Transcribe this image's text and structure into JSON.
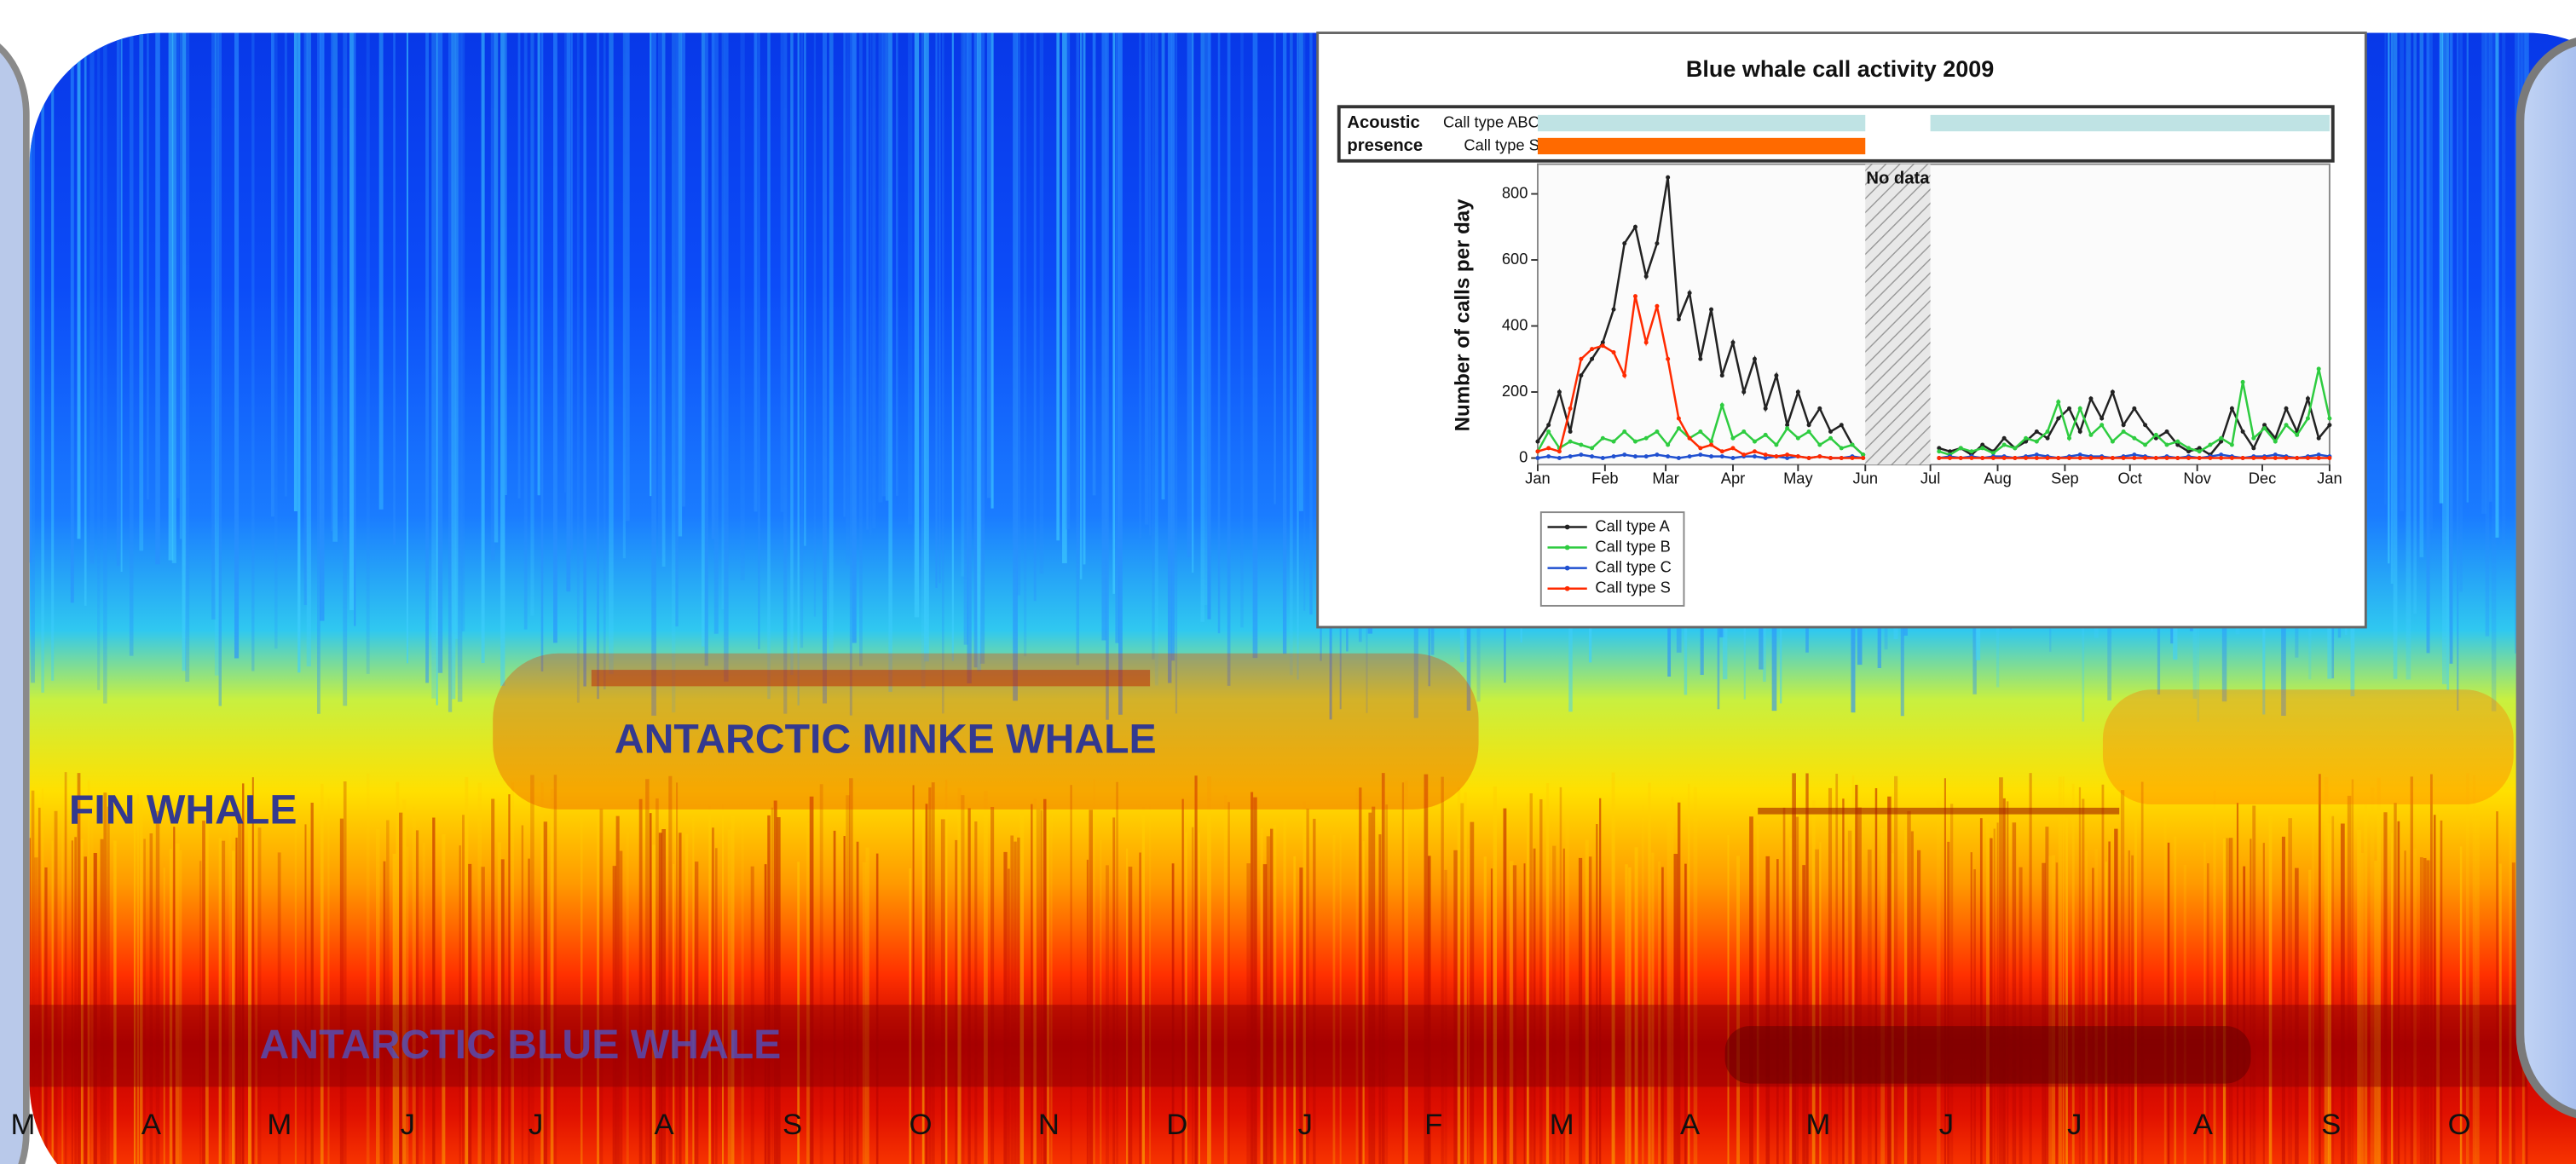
{
  "chart_data": [
    {
      "type": "spectrogram",
      "categories": [
        "M",
        "A",
        "M",
        "J",
        "J",
        "A",
        "S",
        "O",
        "N",
        "D",
        "J",
        "F",
        "M",
        "A",
        "M",
        "J",
        "J",
        "A",
        "S",
        "O"
      ],
      "annotations": [
        "FIN WHALE",
        "ANTARCTIC MINKE WHALE",
        "ANTARCTIC BLUE WHALE"
      ]
    },
    {
      "type": "line",
      "title": "Blue whale call activity 2009",
      "ylabel": "Number of calls per day",
      "presence_label": [
        "Acoustic",
        "presence"
      ],
      "presence": [
        {
          "name": "Call type ABC",
          "color": "#bfe3e4",
          "ranges": [
            [
              0,
              151
            ],
            [
              181,
              365
            ]
          ]
        },
        {
          "name": "Call type S",
          "color": "#ff6a00",
          "ranges": [
            [
              0,
              151
            ]
          ]
        }
      ],
      "no_data": {
        "label": "No data",
        "range": [
          151,
          181
        ]
      },
      "xlim": [
        0,
        365
      ],
      "ylim": [
        0,
        890
      ],
      "xticks": [
        {
          "value": 0,
          "label": "Jan"
        },
        {
          "value": 31,
          "label": "Feb"
        },
        {
          "value": 59,
          "label": "Mar"
        },
        {
          "value": 90,
          "label": "Apr"
        },
        {
          "value": 120,
          "label": "May"
        },
        {
          "value": 151,
          "label": "Jun"
        },
        {
          "value": 181,
          "label": "Jul"
        },
        {
          "value": 212,
          "label": "Aug"
        },
        {
          "value": 243,
          "label": "Sep"
        },
        {
          "value": 273,
          "label": "Oct"
        },
        {
          "value": 304,
          "label": "Nov"
        },
        {
          "value": 334,
          "label": "Dec"
        },
        {
          "value": 365,
          "label": "Jan"
        }
      ],
      "yticks": [
        0,
        200,
        400,
        600,
        800
      ],
      "x": [
        0,
        5,
        10,
        15,
        20,
        25,
        30,
        35,
        40,
        45,
        50,
        55,
        60,
        65,
        70,
        75,
        80,
        85,
        90,
        95,
        100,
        105,
        110,
        115,
        120,
        125,
        130,
        135,
        140,
        145,
        150,
        155,
        160,
        165,
        170,
        175,
        180,
        185,
        190,
        195,
        200,
        205,
        210,
        215,
        220,
        225,
        230,
        235,
        240,
        245,
        250,
        255,
        260,
        265,
        270,
        275,
        280,
        285,
        290,
        295,
        300,
        305,
        310,
        315,
        320,
        325,
        330,
        335,
        340,
        345,
        350,
        355,
        360,
        365
      ],
      "series": [
        {
          "name": "Call type A",
          "color": "#222222",
          "values": [
            50,
            100,
            200,
            80,
            250,
            300,
            350,
            450,
            650,
            700,
            550,
            650,
            850,
            420,
            500,
            300,
            450,
            250,
            350,
            200,
            300,
            150,
            250,
            100,
            200,
            100,
            150,
            80,
            100,
            40,
            10,
            null,
            null,
            null,
            null,
            null,
            null,
            30,
            20,
            30,
            10,
            40,
            20,
            60,
            30,
            50,
            80,
            60,
            120,
            150,
            80,
            180,
            120,
            200,
            100,
            150,
            100,
            60,
            80,
            40,
            20,
            30,
            10,
            50,
            150,
            80,
            30,
            100,
            60,
            150,
            80,
            180,
            60,
            100
          ]
        },
        {
          "name": "Call type B",
          "color": "#2ecc40",
          "values": [
            20,
            80,
            30,
            50,
            40,
            30,
            60,
            50,
            80,
            50,
            60,
            80,
            40,
            90,
            60,
            80,
            50,
            160,
            60,
            80,
            50,
            70,
            40,
            90,
            60,
            80,
            40,
            60,
            30,
            40,
            10,
            null,
            null,
            null,
            null,
            null,
            null,
            20,
            10,
            30,
            20,
            30,
            15,
            40,
            30,
            60,
            50,
            80,
            170,
            60,
            150,
            70,
            100,
            50,
            80,
            60,
            40,
            70,
            40,
            50,
            30,
            20,
            40,
            60,
            40,
            230,
            60,
            90,
            50,
            100,
            70,
            120,
            270,
            120
          ]
        },
        {
          "name": "Call type C",
          "color": "#2050d0",
          "values": [
            0,
            5,
            0,
            5,
            10,
            5,
            0,
            5,
            10,
            5,
            5,
            10,
            5,
            0,
            5,
            10,
            5,
            5,
            0,
            5,
            5,
            0,
            5,
            0,
            5,
            0,
            5,
            0,
            0,
            5,
            0,
            null,
            null,
            null,
            null,
            null,
            null,
            0,
            5,
            0,
            5,
            0,
            5,
            5,
            0,
            5,
            10,
            5,
            0,
            5,
            10,
            5,
            5,
            0,
            5,
            10,
            5,
            0,
            5,
            0,
            5,
            0,
            5,
            10,
            5,
            0,
            5,
            5,
            10,
            5,
            0,
            5,
            10,
            5
          ]
        },
        {
          "name": "Call type S",
          "color": "#ff2a00",
          "values": [
            20,
            30,
            20,
            150,
            300,
            330,
            340,
            320,
            250,
            490,
            350,
            460,
            300,
            120,
            60,
            30,
            40,
            20,
            30,
            10,
            20,
            10,
            5,
            10,
            5,
            0,
            5,
            0,
            0,
            0,
            0,
            null,
            null,
            null,
            null,
            null,
            null,
            0,
            0,
            0,
            0,
            0,
            0,
            0,
            0,
            0,
            0,
            0,
            0,
            0,
            0,
            0,
            0,
            0,
            0,
            0,
            0,
            0,
            0,
            0,
            0,
            0,
            0,
            0,
            0,
            0,
            0,
            0,
            0,
            0,
            0,
            0,
            0,
            0
          ]
        }
      ]
    }
  ]
}
